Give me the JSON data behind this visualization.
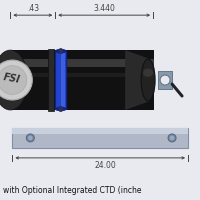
{
  "bg_color": "#e8eaf0",
  "title_text": "with Optional Integrated CTD (inche",
  "dim_top_left": ".43",
  "dim_top_right": "3.440",
  "dim_bottom": "24.00",
  "body_dark": "#111111",
  "body_mid": "#2a2a2a",
  "body_highlight": "#555555",
  "body_light": "#777777",
  "body_sheen": "#999999",
  "blue_band_color": "#2244cc",
  "blue_band_mid": "#3355dd",
  "blue_band_light": "#5577ee",
  "blue_band_dark": "#112288",
  "plate_color": "#b0b8c8",
  "plate_light": "#c8d0de",
  "plate_dark": "#8090a4",
  "logo_outer": "#cccccc",
  "logo_inner": "#bbbbbb",
  "logo_text": "#333333",
  "dim_line_color": "#444444",
  "endcap_dark": "#222222",
  "mount_color": "#8899aa",
  "mount_dark": "#667788",
  "wire_color": "#222222"
}
